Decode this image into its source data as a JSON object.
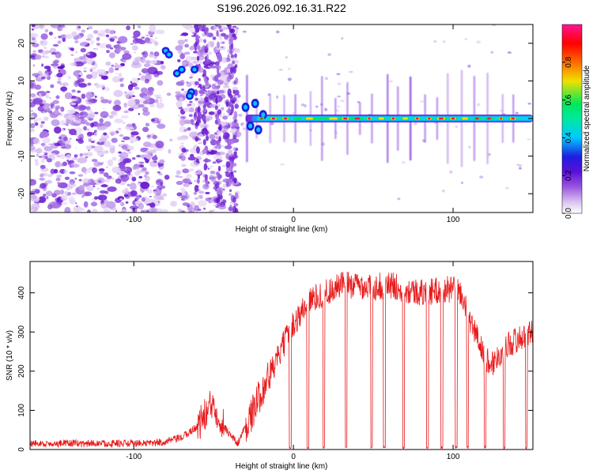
{
  "title": "S196.2026.092.16.31.R22",
  "chart_data": [
    {
      "type": "heatmap",
      "name": "spectrogram",
      "xlabel": "Height of straight line (km)",
      "ylabel": "Frequency (Hz)",
      "xlim": [
        -165,
        150
      ],
      "ylim": [
        -25,
        25
      ],
      "xticks": [
        -100,
        0,
        100
      ],
      "yticks": [
        -20,
        -10,
        0,
        10,
        20
      ],
      "colorbar": {
        "label": "Normalized spectral amplitude",
        "range": [
          0.0,
          1.0
        ],
        "ticks": [
          0.0,
          0.2,
          0.4,
          0.6,
          0.8
        ],
        "tick_labels": [
          "0.0",
          "0.2",
          "0.4",
          "0.6",
          "0.8"
        ],
        "colors": [
          "#ffffff",
          "#d9c3f0",
          "#7a1fd6",
          "#1e1ee0",
          "#00c8ff",
          "#00e85a",
          "#f0e000",
          "#ff6a00",
          "#ff0000",
          "#ff1493"
        ]
      },
      "features": {
        "noise_region_x": [
          -165,
          -35
        ],
        "gap_region_x": [
          -82,
          -72
        ],
        "tone_start_x": -30,
        "tone_frequency_hz": 0,
        "strong_segments_x": [
          [
            -20,
            140
          ]
        ]
      }
    },
    {
      "type": "line",
      "name": "snr",
      "xlabel": "Height of straight line (km)",
      "ylabel": "SNR (10 * v/v)",
      "xlim": [
        -165,
        150
      ],
      "ylim": [
        0,
        480
      ],
      "xticks": [
        -100,
        0,
        100
      ],
      "yticks": [
        0,
        100,
        200,
        300,
        400
      ],
      "series": [
        {
          "name": "SNR",
          "color": "#e8191a",
          "x": [
            -165,
            -150,
            -130,
            -110,
            -90,
            -80,
            -70,
            -60,
            -55,
            -50,
            -45,
            -40,
            -35,
            -30,
            -25,
            -20,
            -15,
            -10,
            -5,
            0,
            5,
            10,
            20,
            25,
            30,
            40,
            50,
            60,
            70,
            80,
            90,
            100,
            105,
            110,
            115,
            120,
            125,
            130,
            135,
            140,
            145,
            150
          ],
          "values": [
            15,
            15,
            15,
            15,
            15,
            20,
            30,
            60,
            90,
            120,
            70,
            40,
            15,
            60,
            100,
            150,
            190,
            230,
            280,
            320,
            350,
            380,
            400,
            410,
            420,
            420,
            415,
            420,
            410,
            400,
            405,
            410,
            400,
            330,
            290,
            230,
            220,
            250,
            270,
            280,
            290,
            300
          ]
        }
      ],
      "dropout_x": [
        -2,
        9,
        19,
        33,
        49,
        57,
        69,
        84,
        93,
        102,
        109,
        120,
        132,
        146
      ]
    }
  ]
}
